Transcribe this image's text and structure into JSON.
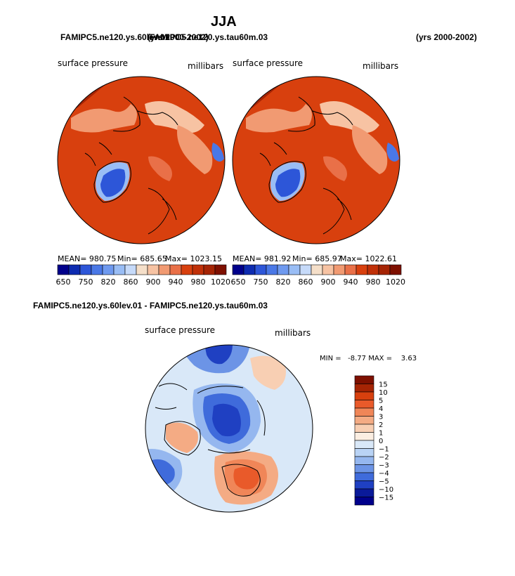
{
  "season": "JJA",
  "top_left": {
    "case_title": "FAMIPC5.ne120.ys.60lev.01",
    "years": "(yrs 2000-2002)"
  },
  "top_right": {
    "case_title": "FAMIPC5.ne120.ys.tau60m.03",
    "years": "(yrs 2000-2002)"
  },
  "diff_title": "FAMIPC5.ne120.ys.60lev.01 - FAMIPC5.ne120.ys.tau60m.03",
  "colors": {
    "land_low": "#2d56d8",
    "ocean_high": "#d8400e",
    "neutral": "#d9e8f8"
  },
  "chart_data": [
    {
      "type": "heatmap",
      "projection": "polar stereographic (north)",
      "variable": "surface pressure",
      "units": "millibars",
      "stats": {
        "mean": "MEAN= 980.75",
        "min": "Min= 685.65",
        "max": "Max= 1023.15"
      },
      "colorbar": {
        "levels": [
          650,
          700,
          750,
          800,
          820,
          840,
          860,
          880,
          900,
          920,
          940,
          960,
          980,
          1000,
          1020
        ],
        "tick_labels": [
          "650",
          "750",
          "820",
          "860",
          "900",
          "940",
          "980",
          "1020"
        ],
        "colors": [
          "#00008b",
          "#0d2bb0",
          "#2d56d8",
          "#4a78e6",
          "#6e99ef",
          "#99bdf5",
          "#c6daf9",
          "#f5dfc9",
          "#f7c3a3",
          "#f19a72",
          "#e97048",
          "#d8400e",
          "#c03008",
          "#a52404",
          "#7e1000"
        ]
      }
    },
    {
      "type": "heatmap",
      "projection": "polar stereographic (north)",
      "variable": "surface pressure",
      "units": "millibars",
      "stats": {
        "mean": "MEAN= 981.92",
        "min": "Min= 685.97",
        "max": "Max= 1022.61"
      },
      "colorbar": {
        "levels": [
          650,
          700,
          750,
          800,
          820,
          840,
          860,
          880,
          900,
          920,
          940,
          960,
          980,
          1000,
          1020
        ],
        "tick_labels": [
          "650",
          "750",
          "820",
          "860",
          "900",
          "940",
          "980",
          "1020"
        ],
        "colors": [
          "#00008b",
          "#0d2bb0",
          "#2d56d8",
          "#4a78e6",
          "#6e99ef",
          "#99bdf5",
          "#c6daf9",
          "#f5dfc9",
          "#f7c3a3",
          "#f19a72",
          "#e97048",
          "#d8400e",
          "#c03008",
          "#a52404",
          "#7e1000"
        ]
      }
    },
    {
      "type": "heatmap",
      "projection": "polar stereographic (north)",
      "variable": "surface pressure",
      "units": "millibars",
      "stats": {
        "min_max": "MIN =   -8.77 MAX =    3.63"
      },
      "colorbar": {
        "labels": [
          "15",
          "10",
          "5",
          "4",
          "3",
          "2",
          "1",
          "0",
          "−1",
          "−2",
          "−3",
          "−4",
          "−5",
          "−10",
          "−15"
        ],
        "colors": [
          "#7e1000",
          "#a52404",
          "#d8400e",
          "#e95a2a",
          "#f08658",
          "#f4ab84",
          "#f8cfb3",
          "#fbeee2",
          "#d9e8f8",
          "#b9d3f5",
          "#95b7ef",
          "#6c94e6",
          "#3f6bdb",
          "#1f40c2",
          "#0a1a9a",
          "#00008b"
        ]
      }
    }
  ]
}
